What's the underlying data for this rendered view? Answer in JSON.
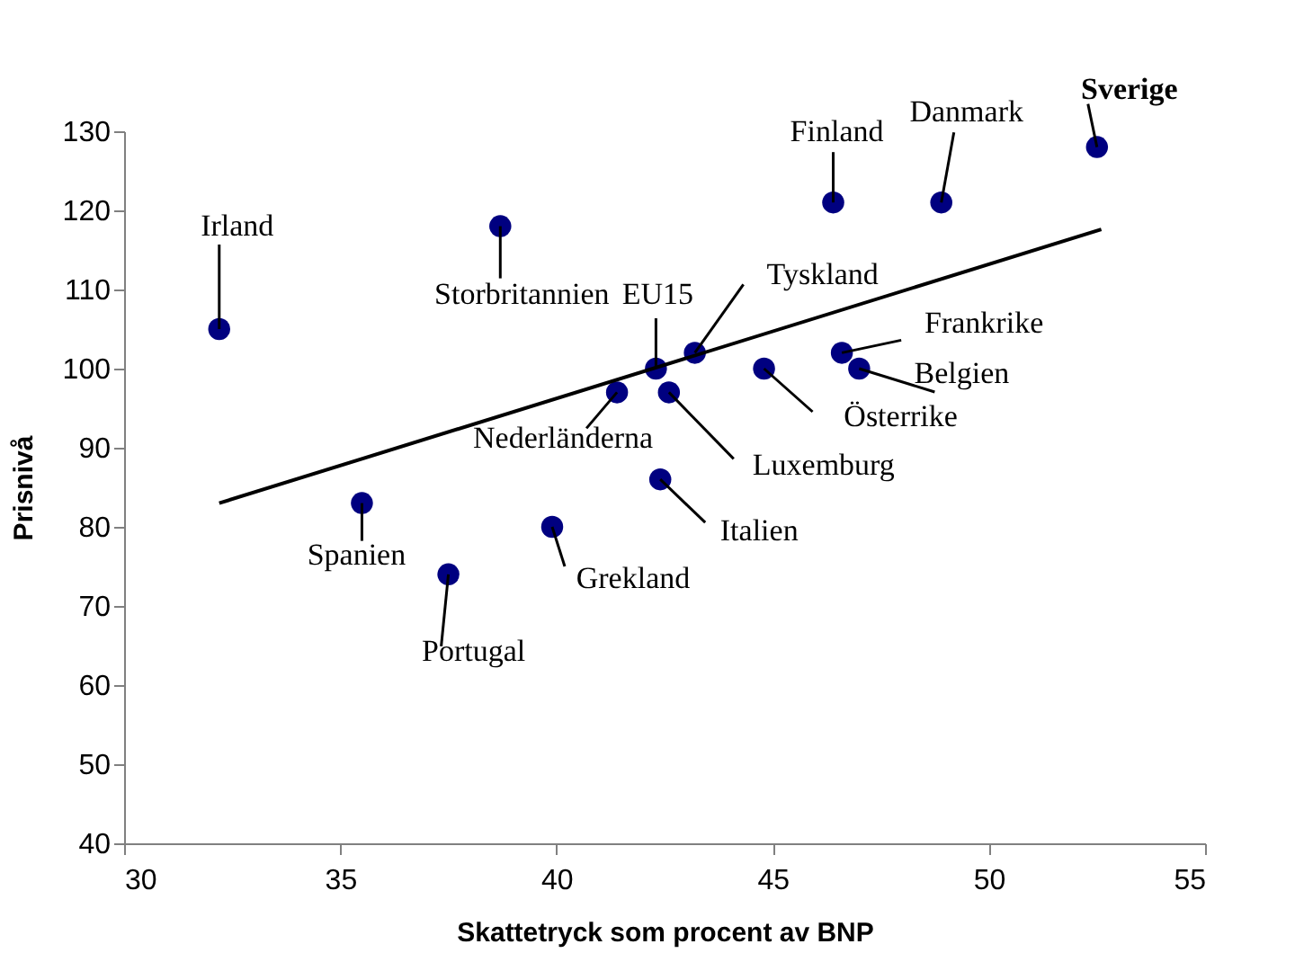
{
  "chart_data": {
    "type": "scatter",
    "xlabel": "Skattetryck som procent av BNP",
    "ylabel": "Prisnivå",
    "xlim": [
      30,
      55
    ],
    "xticks": [
      30,
      35,
      40,
      45,
      50,
      55
    ],
    "ylim": [
      40,
      130
    ],
    "yticks": [
      40,
      50,
      60,
      70,
      80,
      90,
      100,
      110,
      120,
      130
    ],
    "grid": false,
    "legend": false,
    "series": [
      {
        "marker": "circle",
        "color": "#000080",
        "x": [
          32.2,
          38.7,
          42.3,
          43.2,
          41.4,
          42.6,
          42.4,
          35.5,
          37.5,
          39.9,
          44.8,
          46.6,
          47.0,
          46.4,
          48.9,
          52.5
        ],
        "values": [
          105,
          118,
          100,
          102,
          97,
          97,
          86,
          83,
          74,
          80,
          100,
          102,
          100,
          121,
          121,
          128
        ]
      },
      {
        "type": "line",
        "marker": "none",
        "color": "#000000",
        "line_style": "solid",
        "x": [
          32.2,
          52.6
        ],
        "values": [
          83,
          117.6
        ]
      }
    ],
    "annotations": [
      {
        "text": "Irland",
        "x": 32.2,
        "y": 105
      },
      {
        "text": "Storbritannien",
        "x": 38.7,
        "y": 118
      },
      {
        "text": "EU15",
        "x": 42.3,
        "y": 100
      },
      {
        "text": "Tyskland",
        "x": 43.2,
        "y": 102
      },
      {
        "text": "Nederländerna",
        "x": 41.4,
        "y": 97
      },
      {
        "text": "Luxemburg",
        "x": 42.6,
        "y": 97
      },
      {
        "text": "Italien",
        "x": 42.4,
        "y": 86
      },
      {
        "text": "Spanien",
        "x": 35.5,
        "y": 83
      },
      {
        "text": "Portugal",
        "x": 37.5,
        "y": 74
      },
      {
        "text": "Grekland",
        "x": 39.9,
        "y": 80
      },
      {
        "text": "Österrike",
        "x": 44.8,
        "y": 100
      },
      {
        "text": "Frankrike",
        "x": 46.6,
        "y": 102
      },
      {
        "text": "Belgien",
        "x": 47.0,
        "y": 100
      },
      {
        "text": "Finland",
        "x": 46.4,
        "y": 121
      },
      {
        "text": "Danmark",
        "x": 48.9,
        "y": 121
      },
      {
        "text": "Sverige",
        "x": 52.5,
        "y": 128
      }
    ]
  }
}
